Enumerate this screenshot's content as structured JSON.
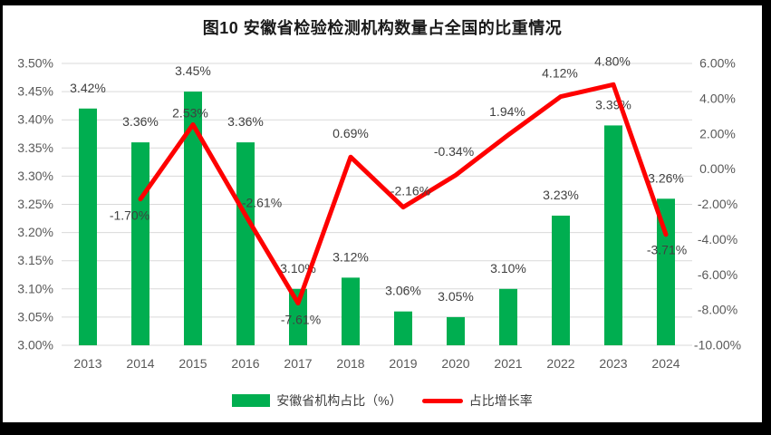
{
  "frame": {
    "background": "#000000"
  },
  "chart_data": {
    "type": "combo-bar-line",
    "title": "图10 安徽省检验检测机构数量占全国的比重情况",
    "categories": [
      "2013",
      "2014",
      "2015",
      "2016",
      "2017",
      "2018",
      "2019",
      "2020",
      "2021",
      "2022",
      "2023",
      "2024"
    ],
    "series": [
      {
        "name": "安徽省机构占比（%）",
        "type": "bar",
        "axis": "left",
        "color": "#00AE50",
        "values": [
          3.42,
          3.36,
          3.45,
          3.36,
          3.1,
          3.12,
          3.06,
          3.05,
          3.1,
          3.23,
          3.39,
          3.26
        ],
        "data_labels": [
          "3.42%",
          "3.36%",
          "3.45%",
          "3.36%",
          "3.10%",
          "3.12%",
          "3.06%",
          "3.05%",
          "3.10%",
          "3.23%",
          "3.39%",
          "3.26%"
        ]
      },
      {
        "name": "占比增长率",
        "type": "line",
        "axis": "right",
        "color": "#FE0000",
        "values": [
          null,
          -1.7,
          2.53,
          -2.61,
          -7.61,
          0.69,
          -2.16,
          -0.34,
          1.94,
          4.12,
          4.8,
          -3.71
        ],
        "data_labels": [
          null,
          "-1.70%",
          "2.53%",
          "-2.61%",
          "-7.61%",
          "0.69%",
          "-2.16%",
          "-0.34%",
          "1.94%",
          "4.12%",
          "4.80%",
          "-3.71%"
        ],
        "label_offsets": [
          null,
          [
            -12,
            23
          ],
          [
            -3,
            -8
          ],
          [
            18,
            -9
          ],
          [
            3,
            23
          ],
          [
            0,
            -21
          ],
          [
            8,
            -13
          ],
          [
            -2,
            -21
          ],
          [
            -1,
            -21
          ],
          [
            -1,
            -21
          ],
          [
            -1,
            -21
          ],
          [
            1,
            22
          ]
        ]
      }
    ],
    "left_axis": {
      "min": 3.0,
      "max": 3.5,
      "step": 0.05,
      "tick_labels": [
        "3.50%",
        "3.45%",
        "3.40%",
        "3.35%",
        "3.30%",
        "3.25%",
        "3.20%",
        "3.15%",
        "3.10%",
        "3.05%",
        "3.00%"
      ]
    },
    "right_axis": {
      "min": -10,
      "max": 6,
      "step": 2,
      "tick_labels": [
        "6.00%",
        "4.00%",
        "2.00%",
        "0.00%",
        "-2.00%",
        "-4.00%",
        "-6.00%",
        "-8.00%",
        "-10.00%"
      ]
    },
    "grid": true,
    "legend_position": "bottom",
    "colors": {
      "grid": "#D9D9D9",
      "tick_text": "#595959",
      "label_text": "#404040",
      "title_text": "#1a1a1a"
    }
  }
}
